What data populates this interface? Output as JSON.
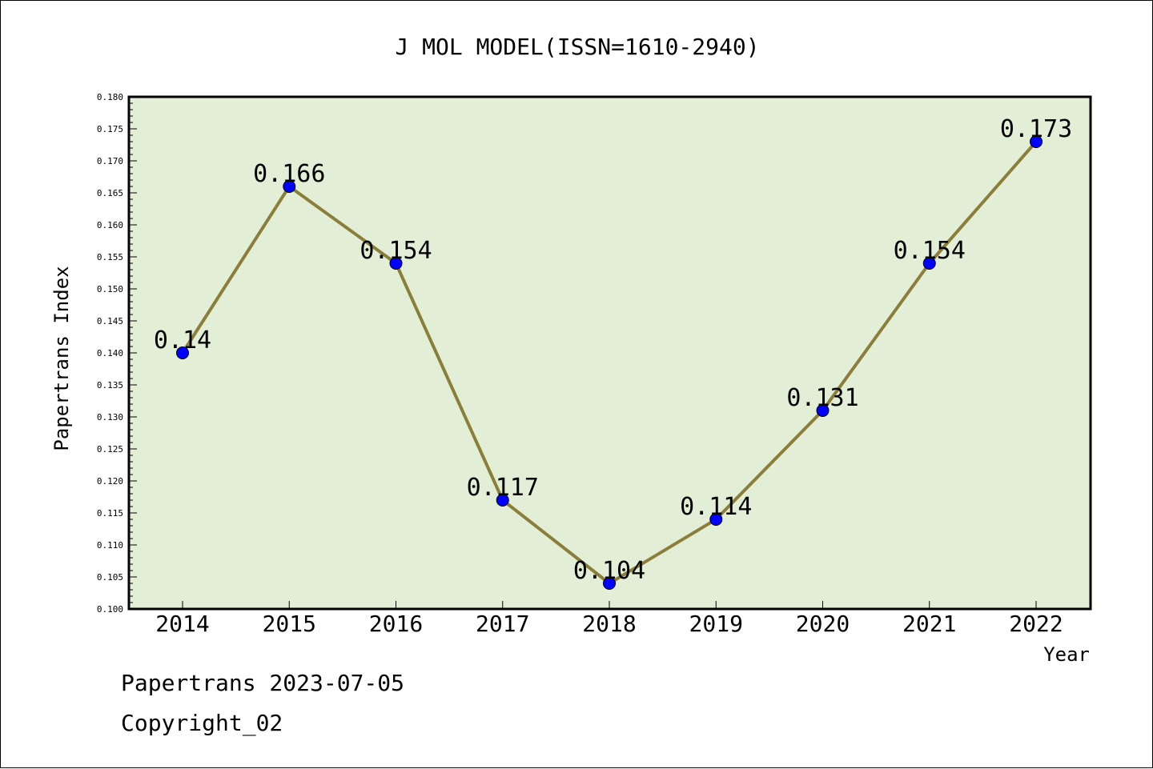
{
  "chart_data": {
    "type": "line",
    "title": "J MOL MODEL(ISSN=1610-2940)",
    "xlabel": "Year",
    "ylabel": "Papertrans Index",
    "categories": [
      "2014",
      "2015",
      "2016",
      "2017",
      "2018",
      "2019",
      "2020",
      "2021",
      "2022"
    ],
    "values": [
      0.14,
      0.166,
      0.154,
      0.117,
      0.104,
      0.114,
      0.131,
      0.154,
      0.173
    ],
    "data_labels": [
      "0.14",
      "0.166",
      "0.154",
      "0.117",
      "0.104",
      "0.114",
      "0.131",
      "0.154",
      "0.173"
    ],
    "ylim": [
      0.1,
      0.18
    ],
    "yticks": [
      "0.100",
      "0.105",
      "0.110",
      "0.115",
      "0.120",
      "0.125",
      "0.130",
      "0.135",
      "0.140",
      "0.145",
      "0.150",
      "0.155",
      "0.160",
      "0.165",
      "0.170",
      "0.175",
      "0.180"
    ],
    "grid": false,
    "legend": "none",
    "colors": {
      "plot_background": "#e2efd6",
      "line": "#8b7d3a",
      "marker": "#0000ff"
    }
  },
  "footer": {
    "line1": "Papertrans 2023-07-05",
    "line2": "Copyright_02"
  }
}
